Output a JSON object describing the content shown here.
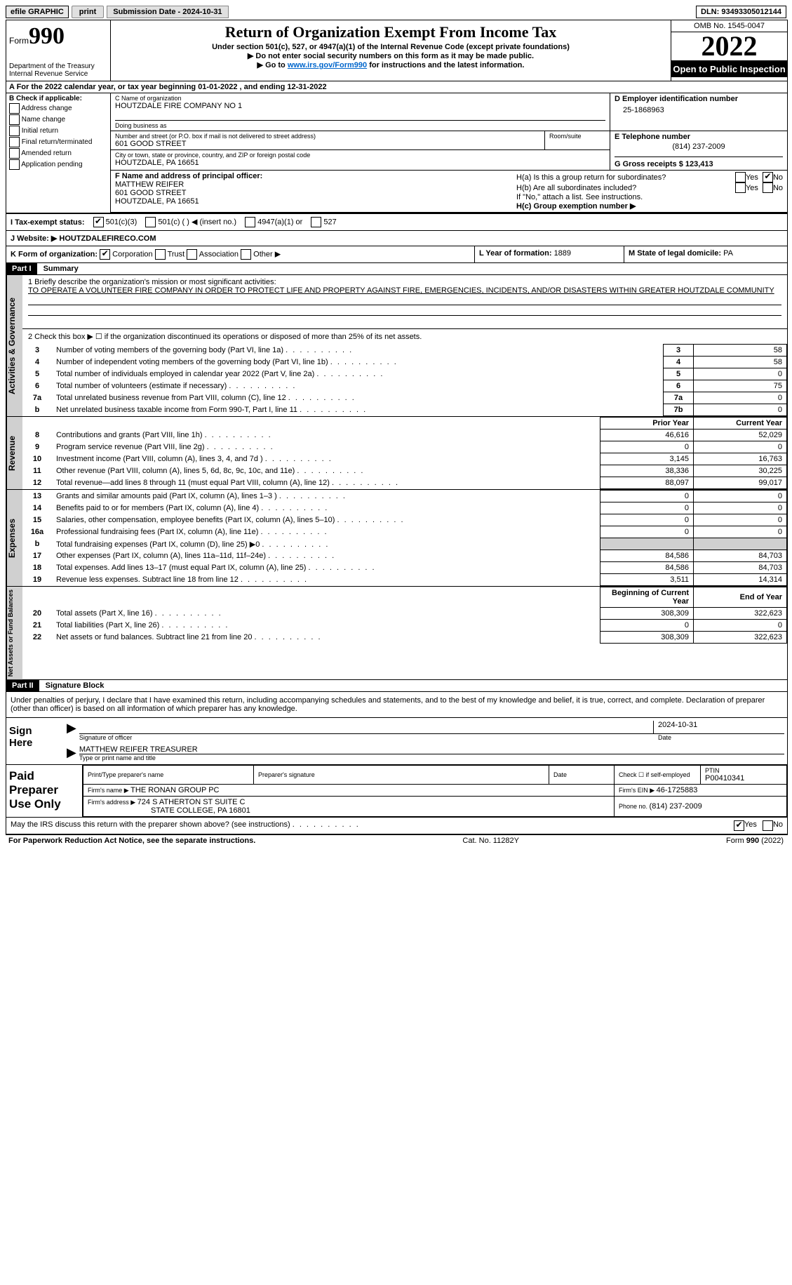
{
  "top": {
    "efile": "efile GRAPHIC",
    "print": "print",
    "submission_label": "Submission Date - ",
    "submission_date": "2024-10-31",
    "dln_label": "DLN: ",
    "dln": "93493305012144"
  },
  "header": {
    "form_label": "Form",
    "form_number": "990",
    "dept": "Department of the Treasury",
    "irs": "Internal Revenue Service",
    "title": "Return of Organization Exempt From Income Tax",
    "subtitle1": "Under section 501(c), 527, or 4947(a)(1) of the Internal Revenue Code (except private foundations)",
    "subtitle2": "▶ Do not enter social security numbers on this form as it may be made public.",
    "subtitle3_prefix": "▶ Go to ",
    "subtitle3_link": "www.irs.gov/Form990",
    "subtitle3_suffix": " for instructions and the latest information.",
    "omb": "OMB No. 1545-0047",
    "year": "2022",
    "open": "Open to Public Inspection"
  },
  "rowA": "A For the 2022 calendar year, or tax year beginning 01-01-2022   , and ending 12-31-2022",
  "colB": {
    "heading": "B Check if applicable:",
    "addr_change": "Address change",
    "name_change": "Name change",
    "initial": "Initial return",
    "final": "Final return/terminated",
    "amended": "Amended return",
    "app_pending": "Application pending"
  },
  "colC": {
    "name_label": "C Name of organization",
    "name": "HOUTZDALE FIRE COMPANY NO 1",
    "dba_label": "Doing business as",
    "dba": "",
    "street_label": "Number and street (or P.O. box if mail is not delivered to street address)",
    "street": "601 GOOD STREET",
    "room_label": "Room/suite",
    "city_label": "City or town, state or province, country, and ZIP or foreign postal code",
    "city": "HOUTZDALE, PA  16651"
  },
  "colD": {
    "ein_label": "D Employer identification number",
    "ein": "25-1868963",
    "phone_label": "E Telephone number",
    "phone": "(814) 237-2009",
    "gross_label": "G Gross receipts $ ",
    "gross": "123,413"
  },
  "rowF": {
    "label": "F Name and address of principal officer:",
    "name": "MATTHEW REIFER",
    "street": "601 GOOD STREET",
    "city": "HOUTZDALE, PA  16651"
  },
  "rowH": {
    "ha": "H(a)  Is this a group return for subordinates?",
    "hb": "H(b)  Are all subordinates included?",
    "hb_note": "If \"No,\" attach a list. See instructions.",
    "hc": "H(c)  Group exemption number ▶",
    "yes": "Yes",
    "no": "No"
  },
  "rowI": {
    "label": "I  Tax-exempt status:",
    "opt1": "501(c)(3)",
    "opt2": "501(c) (   ) ◀ (insert no.)",
    "opt3": "4947(a)(1) or",
    "opt4": "527"
  },
  "rowJ": {
    "label": "J  Website: ▶  ",
    "value": "HOUTZDALEFIRECO.COM"
  },
  "rowK": {
    "label": "K Form of organization:",
    "corp": "Corporation",
    "trust": "Trust",
    "assoc": "Association",
    "other": "Other ▶"
  },
  "rowL": {
    "label": "L Year of formation: ",
    "value": "1889"
  },
  "rowM": {
    "label": "M State of legal domicile: ",
    "value": "PA"
  },
  "part1": {
    "header": "Part I",
    "title": "Summary",
    "line1_label": "1  Briefly describe the organization's mission or most significant activities:",
    "line1_text": "TO OPERATE A VOLUNTEER FIRE COMPANY IN ORDER TO PROTECT LIFE AND PROPERTY AGAINST FIRE, EMERGENCIES, INCIDENTS, AND/OR DISASTERS WITHIN GREATER HOUTZDALE COMMUNITY",
    "line2": "2   Check this box ▶ ☐  if the organization discontinued its operations or disposed of more than 25% of its net assets.",
    "side_ag": "Activities & Governance",
    "side_rev": "Revenue",
    "side_exp": "Expenses",
    "side_na": "Net Assets or Fund Balances",
    "rows_ag": [
      {
        "n": "3",
        "lbl": "Number of voting members of the governing body (Part VI, line 1a)",
        "box": "3",
        "val": "58"
      },
      {
        "n": "4",
        "lbl": "Number of independent voting members of the governing body (Part VI, line 1b)",
        "box": "4",
        "val": "58"
      },
      {
        "n": "5",
        "lbl": "Total number of individuals employed in calendar year 2022 (Part V, line 2a)",
        "box": "5",
        "val": "0"
      },
      {
        "n": "6",
        "lbl": "Total number of volunteers (estimate if necessary)",
        "box": "6",
        "val": "75"
      },
      {
        "n": "7a",
        "lbl": "Total unrelated business revenue from Part VIII, column (C), line 12",
        "box": "7a",
        "val": "0"
      },
      {
        "n": "b",
        "lbl": "Net unrelated business taxable income from Form 990-T, Part I, line 11",
        "box": "7b",
        "val": "0"
      }
    ],
    "prior_year": "Prior Year",
    "current_year": "Current Year",
    "rows_rev": [
      {
        "n": "8",
        "lbl": "Contributions and grants (Part VIII, line 1h)",
        "py": "46,616",
        "cy": "52,029"
      },
      {
        "n": "9",
        "lbl": "Program service revenue (Part VIII, line 2g)",
        "py": "0",
        "cy": "0"
      },
      {
        "n": "10",
        "lbl": "Investment income (Part VIII, column (A), lines 3, 4, and 7d )",
        "py": "3,145",
        "cy": "16,763"
      },
      {
        "n": "11",
        "lbl": "Other revenue (Part VIII, column (A), lines 5, 6d, 8c, 9c, 10c, and 11e)",
        "py": "38,336",
        "cy": "30,225"
      },
      {
        "n": "12",
        "lbl": "Total revenue—add lines 8 through 11 (must equal Part VIII, column (A), line 12)",
        "py": "88,097",
        "cy": "99,017"
      }
    ],
    "rows_exp": [
      {
        "n": "13",
        "lbl": "Grants and similar amounts paid (Part IX, column (A), lines 1–3 )",
        "py": "0",
        "cy": "0"
      },
      {
        "n": "14",
        "lbl": "Benefits paid to or for members (Part IX, column (A), line 4)",
        "py": "0",
        "cy": "0"
      },
      {
        "n": "15",
        "lbl": "Salaries, other compensation, employee benefits (Part IX, column (A), lines 5–10)",
        "py": "0",
        "cy": "0"
      },
      {
        "n": "16a",
        "lbl": "Professional fundraising fees (Part IX, column (A), line 11e)",
        "py": "0",
        "cy": "0"
      },
      {
        "n": "b",
        "lbl": "Total fundraising expenses (Part IX, column (D), line 25) ▶0",
        "py": "shade",
        "cy": "shade"
      },
      {
        "n": "17",
        "lbl": "Other expenses (Part IX, column (A), lines 11a–11d, 11f–24e)",
        "py": "84,586",
        "cy": "84,703"
      },
      {
        "n": "18",
        "lbl": "Total expenses. Add lines 13–17 (must equal Part IX, column (A), line 25)",
        "py": "84,586",
        "cy": "84,703"
      },
      {
        "n": "19",
        "lbl": "Revenue less expenses. Subtract line 18 from line 12",
        "py": "3,511",
        "cy": "14,314"
      }
    ],
    "boy": "Beginning of Current Year",
    "eoy": "End of Year",
    "rows_na": [
      {
        "n": "20",
        "lbl": "Total assets (Part X, line 16)",
        "py": "308,309",
        "cy": "322,623"
      },
      {
        "n": "21",
        "lbl": "Total liabilities (Part X, line 26)",
        "py": "0",
        "cy": "0"
      },
      {
        "n": "22",
        "lbl": "Net assets or fund balances. Subtract line 21 from line 20",
        "py": "308,309",
        "cy": "322,623"
      }
    ]
  },
  "part2": {
    "header": "Part II",
    "title": "Signature Block",
    "penalty": "Under penalties of perjury, I declare that I have examined this return, including accompanying schedules and statements, and to the best of my knowledge and belief, it is true, correct, and complete. Declaration of preparer (other than officer) is based on all information of which preparer has any knowledge.",
    "sign_here": "Sign Here",
    "sig_officer": "Signature of officer",
    "sig_date": "2024-10-31",
    "date_lbl": "Date",
    "officer_name": "MATTHEW REIFER  TREASURER",
    "type_name": "Type or print name and title",
    "paid": "Paid Preparer Use Only",
    "prep_name_lbl": "Print/Type preparer's name",
    "prep_sig_lbl": "Preparer's signature",
    "check_self": "Check ☐ if self-employed",
    "ptin_lbl": "PTIN",
    "ptin": "P00410341",
    "firm_name_lbl": "Firm's name   ▶ ",
    "firm_name": "THE RONAN GROUP PC",
    "firm_ein_lbl": "Firm's EIN ▶ ",
    "firm_ein": "46-1725883",
    "firm_addr_lbl": "Firm's address ▶ ",
    "firm_addr1": "724 S ATHERTON ST SUITE C",
    "firm_addr2": "STATE COLLEGE, PA  16801",
    "firm_phone_lbl": "Phone no. ",
    "firm_phone": "(814) 237-2009",
    "discuss": "May the IRS discuss this return with the preparer shown above? (see instructions)"
  },
  "footer": {
    "pra": "For Paperwork Reduction Act Notice, see the separate instructions.",
    "cat": "Cat. No. 11282Y",
    "form": "Form 990 (2022)"
  }
}
